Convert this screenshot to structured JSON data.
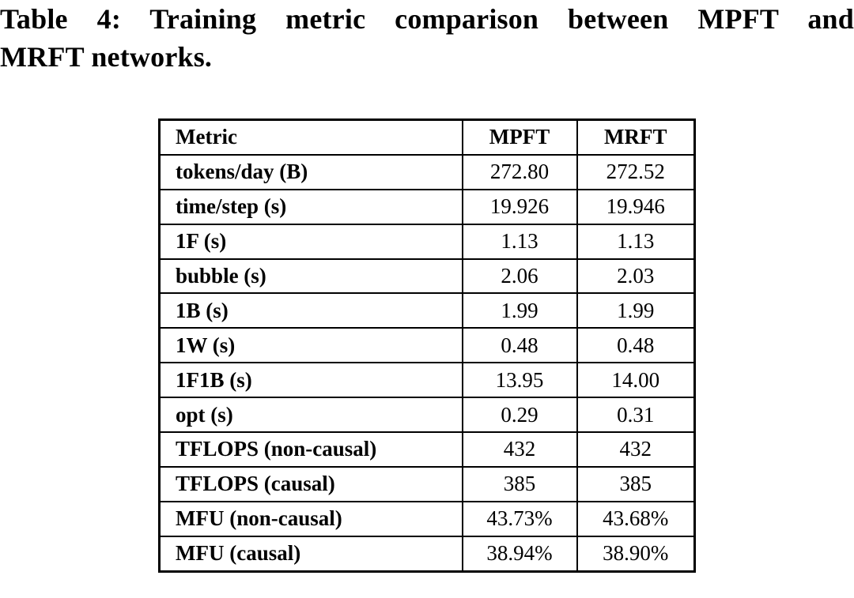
{
  "caption": {
    "line1": "Table 4: Training metric comparison between MPFT and",
    "line2": "MRFT networks."
  },
  "table": {
    "headers": [
      "Metric",
      "MPFT",
      "MRFT"
    ],
    "rows": [
      [
        "tokens/day (B)",
        "272.80",
        "272.52"
      ],
      [
        "time/step (s)",
        "19.926",
        "19.946"
      ],
      [
        "1F (s)",
        "1.13",
        "1.13"
      ],
      [
        "bubble (s)",
        "2.06",
        "2.03"
      ],
      [
        "1B (s)",
        "1.99",
        "1.99"
      ],
      [
        "1W (s)",
        "0.48",
        "0.48"
      ],
      [
        "1F1B (s)",
        "13.95",
        "14.00"
      ],
      [
        "opt (s)",
        "0.29",
        "0.31"
      ],
      [
        "TFLOPS (non-causal)",
        "432",
        "432"
      ],
      [
        "TFLOPS (causal)",
        "385",
        "385"
      ],
      [
        "MFU (non-causal)",
        "43.73%",
        "43.68%"
      ],
      [
        "MFU (causal)",
        "38.94%",
        "38.90%"
      ]
    ]
  },
  "colors": {
    "text": "#000000",
    "border": "#000000",
    "background": "#ffffff"
  }
}
